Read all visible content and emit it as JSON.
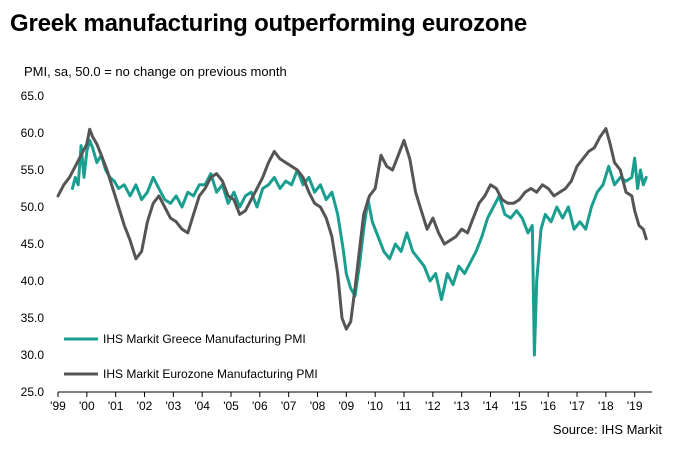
{
  "title": "Greek manufacturing outperforming eurozone",
  "source": "Source: IHS Markit",
  "colors": {
    "greece": "#1a9e8f",
    "eurozone": "#555555",
    "axis": "#000000"
  },
  "chart_data": {
    "type": "line",
    "title": "Greek manufacturing outperforming eurozone",
    "ylabel": "PMI, sa, 50.0 = no change on previous month",
    "xlabel": "",
    "ylim": [
      25,
      65
    ],
    "xlim": [
      1999.0,
      2019.6
    ],
    "y_ticks": [
      "65.0",
      "60.0",
      "55.0",
      "50.0",
      "45.0",
      "40.0",
      "35.0",
      "30.0",
      "25.0"
    ],
    "y_tick_values": [
      65,
      60,
      55,
      50,
      45,
      40,
      35,
      30,
      25
    ],
    "x_ticks": [
      "'99",
      "'00",
      "'01",
      "'02",
      "'03",
      "'04",
      "'05",
      "'06",
      "'07",
      "'08",
      "'09",
      "'10",
      "'11",
      "'12",
      "'13",
      "'14",
      "'15",
      "'16",
      "'17",
      "'18",
      "'19"
    ],
    "x_tick_values": [
      1999,
      2000,
      2001,
      2002,
      2003,
      2004,
      2005,
      2006,
      2007,
      2008,
      2009,
      2010,
      2011,
      2012,
      2013,
      2014,
      2015,
      2016,
      2017,
      2018,
      2019
    ],
    "grid": false,
    "legend_position": "bottom-left",
    "series": [
      {
        "name": "IHS Markit Greece Manufacturing PMI",
        "x": [
          1999.5,
          1999.6,
          1999.7,
          1999.8,
          1999.9,
          2000.0,
          2000.1,
          2000.2,
          2000.35,
          2000.5,
          2000.65,
          2000.8,
          2000.95,
          2001.1,
          2001.3,
          2001.5,
          2001.7,
          2001.9,
          2002.1,
          2002.3,
          2002.5,
          2002.7,
          2002.9,
          2003.1,
          2003.3,
          2003.5,
          2003.7,
          2003.9,
          2004.1,
          2004.3,
          2004.5,
          2004.7,
          2004.9,
          2005.1,
          2005.3,
          2005.5,
          2005.7,
          2005.9,
          2006.1,
          2006.3,
          2006.5,
          2006.7,
          2006.9,
          2007.1,
          2007.3,
          2007.5,
          2007.7,
          2007.9,
          2008.1,
          2008.3,
          2008.5,
          2008.7,
          2008.9,
          2009.0,
          2009.15,
          2009.3,
          2009.45,
          2009.6,
          2009.75,
          2009.9,
          2010.1,
          2010.3,
          2010.5,
          2010.7,
          2010.9,
          2011.1,
          2011.3,
          2011.5,
          2011.7,
          2011.9,
          2012.1,
          2012.3,
          2012.5,
          2012.7,
          2012.9,
          2013.1,
          2013.3,
          2013.5,
          2013.7,
          2013.9,
          2014.1,
          2014.3,
          2014.5,
          2014.7,
          2014.9,
          2015.1,
          2015.3,
          2015.45,
          2015.52,
          2015.6,
          2015.75,
          2015.9,
          2016.1,
          2016.3,
          2016.5,
          2016.7,
          2016.9,
          2017.1,
          2017.3,
          2017.5,
          2017.7,
          2017.9,
          2018.1,
          2018.3,
          2018.5,
          2018.7,
          2018.9,
          2019.0,
          2019.1,
          2019.2,
          2019.3,
          2019.4
        ],
        "values": [
          52.5,
          54.0,
          53.0,
          58.3,
          54.0,
          57.5,
          59.0,
          58.0,
          56.0,
          57.0,
          55.0,
          54.0,
          53.5,
          52.5,
          53.0,
          51.5,
          53.0,
          51.0,
          52.0,
          54.0,
          52.5,
          51.0,
          50.5,
          51.5,
          50.0,
          52.0,
          51.5,
          53.0,
          53.0,
          54.5,
          52.0,
          53.0,
          50.5,
          52.0,
          50.0,
          51.5,
          52.0,
          50.0,
          52.5,
          53.0,
          54.0,
          52.5,
          53.5,
          53.0,
          55.0,
          53.0,
          54.0,
          52.0,
          53.0,
          51.0,
          52.0,
          49.0,
          44.0,
          41.0,
          39.0,
          38.0,
          42.0,
          47.0,
          51.0,
          48.0,
          46.0,
          44.0,
          43.0,
          45.0,
          44.0,
          46.5,
          44.0,
          43.0,
          42.0,
          40.0,
          41.0,
          37.5,
          41.0,
          39.5,
          42.0,
          41.0,
          42.5,
          44.0,
          46.0,
          48.5,
          50.0,
          51.5,
          49.0,
          48.5,
          49.5,
          48.5,
          46.5,
          47.5,
          30.0,
          40.0,
          47.0,
          49.0,
          48.0,
          50.0,
          48.5,
          50.0,
          47.0,
          48.0,
          47.0,
          50.0,
          52.0,
          53.0,
          55.5,
          53.0,
          54.0,
          53.5,
          54.0,
          56.6,
          52.5,
          55.0,
          53.0,
          54.0
        ]
      },
      {
        "name": "IHS Markit Eurozone Manufacturing PMI",
        "x": [
          1999.0,
          1999.2,
          1999.4,
          1999.6,
          1999.8,
          2000.0,
          2000.1,
          2000.2,
          2000.35,
          2000.5,
          2000.7,
          2000.9,
          2001.1,
          2001.3,
          2001.5,
          2001.7,
          2001.9,
          2002.1,
          2002.3,
          2002.5,
          2002.7,
          2002.9,
          2003.1,
          2003.3,
          2003.5,
          2003.7,
          2003.9,
          2004.1,
          2004.3,
          2004.5,
          2004.7,
          2004.9,
          2005.1,
          2005.3,
          2005.5,
          2005.7,
          2005.9,
          2006.1,
          2006.3,
          2006.5,
          2006.7,
          2006.9,
          2007.1,
          2007.3,
          2007.5,
          2007.7,
          2007.9,
          2008.1,
          2008.3,
          2008.5,
          2008.7,
          2008.85,
          2009.0,
          2009.15,
          2009.3,
          2009.45,
          2009.6,
          2009.8,
          2010.0,
          2010.2,
          2010.4,
          2010.6,
          2010.8,
          2011.0,
          2011.2,
          2011.4,
          2011.6,
          2011.8,
          2012.0,
          2012.2,
          2012.4,
          2012.6,
          2012.8,
          2013.0,
          2013.2,
          2013.4,
          2013.6,
          2013.8,
          2014.0,
          2014.2,
          2014.4,
          2014.6,
          2014.8,
          2015.0,
          2015.2,
          2015.4,
          2015.6,
          2015.8,
          2016.0,
          2016.2,
          2016.4,
          2016.6,
          2016.8,
          2017.0,
          2017.2,
          2017.4,
          2017.6,
          2017.8,
          2018.0,
          2018.15,
          2018.3,
          2018.5,
          2018.7,
          2018.9,
          2019.0,
          2019.15,
          2019.3,
          2019.4
        ],
        "values": [
          51.5,
          53.0,
          54.0,
          55.5,
          57.0,
          58.5,
          60.5,
          59.5,
          58.5,
          57.0,
          55.0,
          52.5,
          50.0,
          47.5,
          45.5,
          43.0,
          44.0,
          48.0,
          50.5,
          51.5,
          50.0,
          48.5,
          48.0,
          47.0,
          46.5,
          49.0,
          51.5,
          52.5,
          54.0,
          54.5,
          53.5,
          51.5,
          51.0,
          49.0,
          49.5,
          51.0,
          52.5,
          54.0,
          56.0,
          57.5,
          56.5,
          56.0,
          55.5,
          55.0,
          54.0,
          52.0,
          50.5,
          50.0,
          48.5,
          46.0,
          41.0,
          35.0,
          33.5,
          34.5,
          39.0,
          44.0,
          49.0,
          51.5,
          52.5,
          57.0,
          55.5,
          55.0,
          57.0,
          59.0,
          56.5,
          52.0,
          49.5,
          47.0,
          48.5,
          46.5,
          45.0,
          45.5,
          46.0,
          47.0,
          46.5,
          48.5,
          50.5,
          51.5,
          53.0,
          52.5,
          51.0,
          50.5,
          50.5,
          51.0,
          52.0,
          52.5,
          52.0,
          53.0,
          52.5,
          51.5,
          52.0,
          52.5,
          53.5,
          55.5,
          56.5,
          57.5,
          58.0,
          59.5,
          60.6,
          58.5,
          56.0,
          55.0,
          52.0,
          51.5,
          49.5,
          47.5,
          47.0,
          45.7
        ]
      }
    ]
  }
}
